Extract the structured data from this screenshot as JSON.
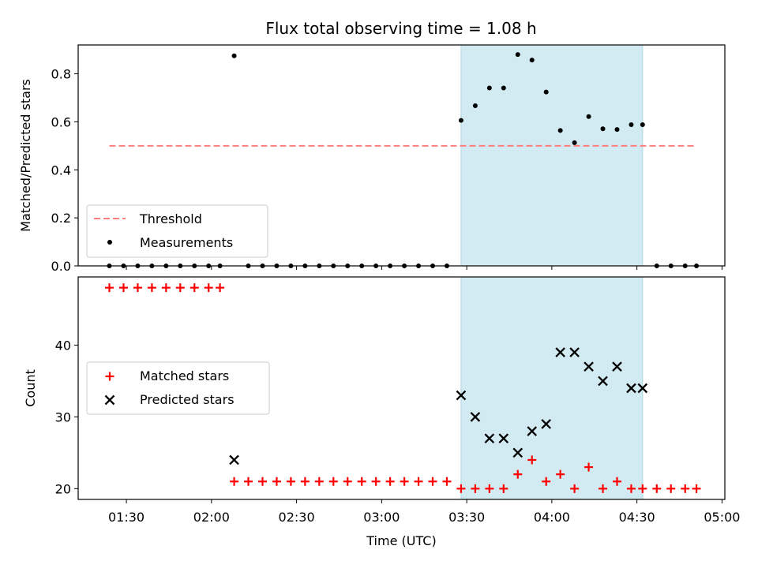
{
  "chart_data": [
    {
      "type": "scatter",
      "title": "Flux total observing time = 1.08 h",
      "xlabel": "",
      "ylabel": "Matched/Predicted stars",
      "ylim": [
        0,
        0.92
      ],
      "yticks": [
        "0.0",
        "0.2",
        "0.4",
        "0.6",
        "0.8"
      ],
      "legend_position": "lower-left",
      "shaded_region": {
        "x": [
          "03:28",
          "04:32"
        ],
        "color": "#add8e6"
      },
      "threshold": {
        "name": "Threshold",
        "value": 0.5,
        "x": [
          "01:24",
          "04:51"
        ],
        "color": "#ff7f7f"
      },
      "series": [
        {
          "name": "Measurements",
          "color": "#000000",
          "points": [
            [
              "01:24",
              0
            ],
            [
              "01:29",
              0
            ],
            [
              "01:34",
              0
            ],
            [
              "01:39",
              0
            ],
            [
              "01:44",
              0
            ],
            [
              "01:49",
              0
            ],
            [
              "01:54",
              0
            ],
            [
              "01:59",
              0
            ],
            [
              "02:03",
              0
            ],
            [
              "02:08",
              0.875
            ],
            [
              "02:13",
              0
            ],
            [
              "02:18",
              0
            ],
            [
              "02:23",
              0
            ],
            [
              "02:28",
              0
            ],
            [
              "02:33",
              0
            ],
            [
              "02:38",
              0
            ],
            [
              "02:43",
              0
            ],
            [
              "02:48",
              0
            ],
            [
              "02:53",
              0
            ],
            [
              "02:58",
              0
            ],
            [
              "03:03",
              0
            ],
            [
              "03:08",
              0
            ],
            [
              "03:13",
              0
            ],
            [
              "03:18",
              0
            ],
            [
              "03:23",
              0
            ],
            [
              "03:28",
              0.606
            ],
            [
              "03:33",
              0.667
            ],
            [
              "03:38",
              0.741
            ],
            [
              "03:43",
              0.741
            ],
            [
              "03:48",
              0.88
            ],
            [
              "03:53",
              0.857
            ],
            [
              "03:58",
              0.724
            ],
            [
              "04:03",
              0.564
            ],
            [
              "04:08",
              0.513
            ],
            [
              "04:13",
              0.622
            ],
            [
              "04:18",
              0.571
            ],
            [
              "04:23",
              0.568
            ],
            [
              "04:28",
              0.588
            ],
            [
              "04:32",
              0.588
            ],
            [
              "04:37",
              0
            ],
            [
              "04:42",
              0
            ],
            [
              "04:47",
              0
            ],
            [
              "04:51",
              0
            ]
          ]
        }
      ]
    },
    {
      "type": "scatter",
      "title": "",
      "xlabel": "Time (UTC)",
      "ylabel": "Count",
      "ylim": [
        18.5,
        49.5
      ],
      "yticks": [
        "20",
        "30",
        "40"
      ],
      "xlim": [
        "01:13",
        "05:01"
      ],
      "xticks": [
        "01:30",
        "02:00",
        "02:30",
        "03:00",
        "03:30",
        "04:00",
        "04:30",
        "05:00"
      ],
      "legend_position": "center-left",
      "shaded_region": {
        "x": [
          "03:28",
          "04:32"
        ],
        "color": "#add8e6"
      },
      "series": [
        {
          "name": "Matched stars",
          "marker": "plus",
          "color": "#ff0000",
          "points": [
            [
              "01:24",
              48
            ],
            [
              "01:29",
              48
            ],
            [
              "01:34",
              48
            ],
            [
              "01:39",
              48
            ],
            [
              "01:44",
              48
            ],
            [
              "01:49",
              48
            ],
            [
              "01:54",
              48
            ],
            [
              "01:59",
              48
            ],
            [
              "02:03",
              48
            ],
            [
              "02:08",
              21
            ],
            [
              "02:13",
              21
            ],
            [
              "02:18",
              21
            ],
            [
              "02:23",
              21
            ],
            [
              "02:28",
              21
            ],
            [
              "02:33",
              21
            ],
            [
              "02:38",
              21
            ],
            [
              "02:43",
              21
            ],
            [
              "02:48",
              21
            ],
            [
              "02:53",
              21
            ],
            [
              "02:58",
              21
            ],
            [
              "03:03",
              21
            ],
            [
              "03:08",
              21
            ],
            [
              "03:13",
              21
            ],
            [
              "03:18",
              21
            ],
            [
              "03:23",
              21
            ],
            [
              "03:28",
              20
            ],
            [
              "03:33",
              20
            ],
            [
              "03:38",
              20
            ],
            [
              "03:43",
              20
            ],
            [
              "03:48",
              22
            ],
            [
              "03:53",
              24
            ],
            [
              "03:58",
              21
            ],
            [
              "04:03",
              22
            ],
            [
              "04:08",
              20
            ],
            [
              "04:13",
              23
            ],
            [
              "04:18",
              20
            ],
            [
              "04:23",
              21
            ],
            [
              "04:28",
              20
            ],
            [
              "04:32",
              20
            ],
            [
              "04:37",
              20
            ],
            [
              "04:42",
              20
            ],
            [
              "04:47",
              20
            ],
            [
              "04:51",
              20
            ]
          ]
        },
        {
          "name": "Predicted stars",
          "marker": "x",
          "color": "#000000",
          "points": [
            [
              "02:08",
              24
            ],
            [
              "03:28",
              33
            ],
            [
              "03:33",
              30
            ],
            [
              "03:38",
              27
            ],
            [
              "03:43",
              27
            ],
            [
              "03:48",
              25
            ],
            [
              "03:53",
              28
            ],
            [
              "03:58",
              29
            ],
            [
              "04:03",
              39
            ],
            [
              "04:08",
              39
            ],
            [
              "04:13",
              37
            ],
            [
              "04:18",
              35
            ],
            [
              "04:23",
              37
            ],
            [
              "04:28",
              34
            ],
            [
              "04:32",
              34
            ]
          ]
        }
      ]
    }
  ]
}
